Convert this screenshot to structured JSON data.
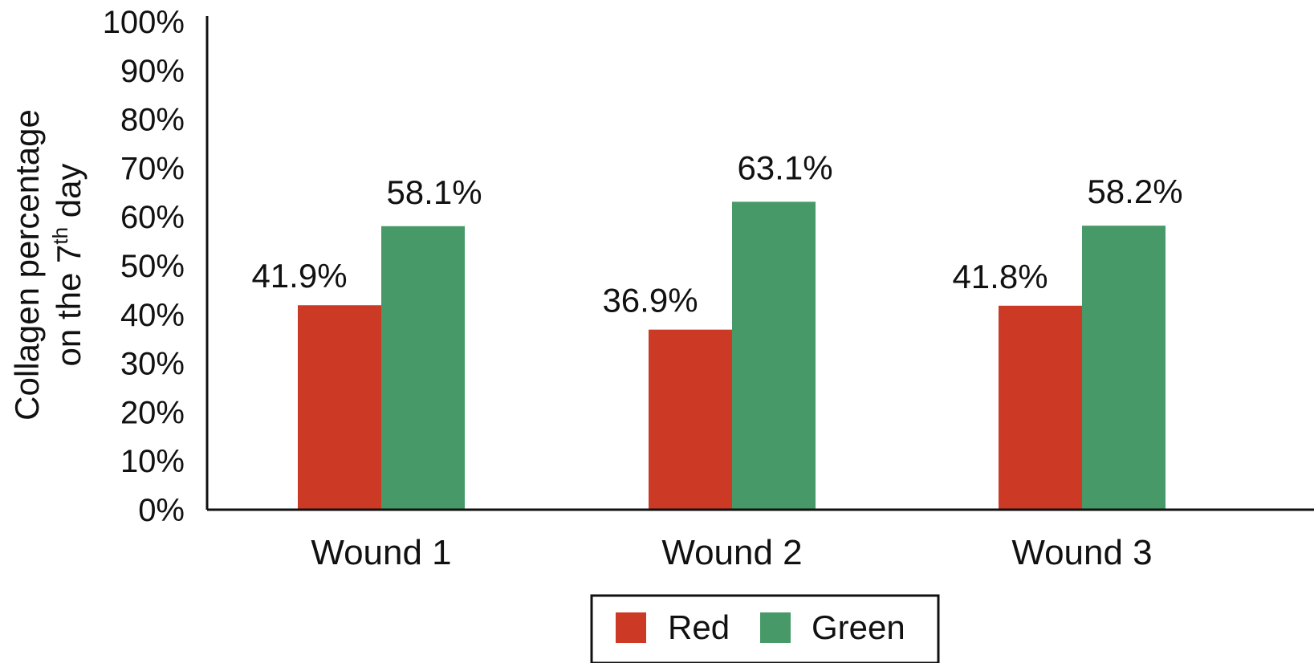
{
  "chart_data": {
    "type": "bar",
    "title": "",
    "xlabel": "",
    "ylabel": {
      "line1": "Collagen percentage",
      "line2_prefix": "on the 7",
      "line2_sup": "th",
      "line2_suffix": " day"
    },
    "ylim": [
      0,
      100
    ],
    "ytick_values": [
      0,
      10,
      20,
      30,
      40,
      50,
      60,
      70,
      80,
      90,
      100
    ],
    "ytick_labels": [
      "0%",
      "10%",
      "20%",
      "30%",
      "40%",
      "50%",
      "60%",
      "70%",
      "80%",
      "90%",
      "100%"
    ],
    "categories": [
      "Wound 1",
      "Wound 2",
      "Wound 3"
    ],
    "series": [
      {
        "name": "Red",
        "color": "#cc3a26",
        "values": [
          41.9,
          36.9,
          41.8
        ],
        "labels": [
          "41.9%",
          "36.9%",
          "41.8%"
        ]
      },
      {
        "name": "Green",
        "color": "#479a68",
        "values": [
          58.1,
          63.1,
          58.2
        ],
        "labels": [
          "58.1%",
          "63.1%",
          "58.2%"
        ]
      }
    ],
    "grid": false,
    "legend_position": "bottom-center"
  }
}
